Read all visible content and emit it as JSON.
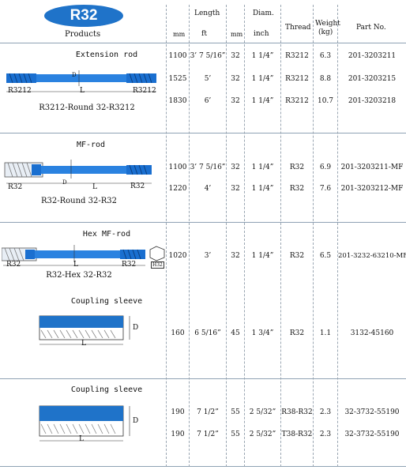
{
  "header": {
    "logo": "R32",
    "products": "Products",
    "length": "Length",
    "diam": "Diam.",
    "thread": "Thread",
    "weight": "Weight",
    "weight_unit": "(kg)",
    "part_no": "Part No.",
    "unit_mm": "mm",
    "unit_ft": "ft",
    "unit_mm2": "mm",
    "unit_inch": "inch"
  },
  "sections": [
    {
      "title": "Extension rod",
      "caption": "R3212-Round 32-R3212",
      "rows": [
        {
          "mm": "1100",
          "ft": "3’ 7 5/16”",
          "dmm": "32",
          "inch": "1 1/4”",
          "thread": "R3212",
          "weight": "6.3",
          "part": "201-3203211"
        },
        {
          "mm": "1525",
          "ft": "5’",
          "dmm": "32",
          "inch": "1 1/4”",
          "thread": "R3212",
          "weight": "8.8",
          "part": "201-3203215"
        },
        {
          "mm": "1830",
          "ft": "6’",
          "dmm": "32",
          "inch": "1 1/4”",
          "thread": "R3212",
          "weight": "10.7",
          "part": "201-3203218"
        }
      ],
      "labels": {
        "left": "R3212",
        "right": "R3212",
        "len": "L",
        "dia": "D"
      }
    },
    {
      "title": "MF-rod",
      "caption": "R32-Round 32-R32",
      "rows": [
        {
          "mm": "1100",
          "ft": "3’ 7 5/16”",
          "dmm": "32",
          "inch": "1 1/4”",
          "thread": "R32",
          "weight": "6.9",
          "part": "201-3203211-MF"
        },
        {
          "mm": "1220",
          "ft": "4’",
          "dmm": "32",
          "inch": "1 1/4”",
          "thread": "R32",
          "weight": "7.6",
          "part": "201-3203212-MF"
        }
      ],
      "labels": {
        "left": "R32",
        "right": "R32",
        "len": "L",
        "dia": "D"
      }
    },
    {
      "title": "Hex MF-rod",
      "caption": "R32-Hex 32-R32",
      "rows": [
        {
          "mm": "1020",
          "ft": "3’",
          "dmm": "32",
          "inch": "1 1/4”",
          "thread": "R32",
          "weight": "6.5",
          "part": "201-3232-63210-MF"
        }
      ],
      "labels": {
        "left": "R32",
        "right": "R32",
        "len": "L",
        "hex": "H32"
      }
    },
    {
      "title": "Coupling sleeve",
      "rows": [
        {
          "mm": "160",
          "ft": "6 5/16”",
          "dmm": "45",
          "inch": "1 3/4”",
          "thread": "R32",
          "weight": "1.1",
          "part": "3132-45160"
        }
      ],
      "labels": {
        "len": "L",
        "dia": "D"
      }
    },
    {
      "title": "Coupling sleeve",
      "rows": [
        {
          "mm": "190",
          "ft": "7 1/2”",
          "dmm": "55",
          "inch": "2 5/32”",
          "thread": "R38-R32",
          "weight": "2.3",
          "part": "32-3732-55190"
        },
        {
          "mm": "190",
          "ft": "7 1/2”",
          "dmm": "55",
          "inch": "2 5/32”",
          "thread": "T38-R32",
          "weight": "2.3",
          "part": "32-3732-55190"
        }
      ],
      "labels": {
        "len": "L",
        "dia": "D"
      }
    }
  ]
}
